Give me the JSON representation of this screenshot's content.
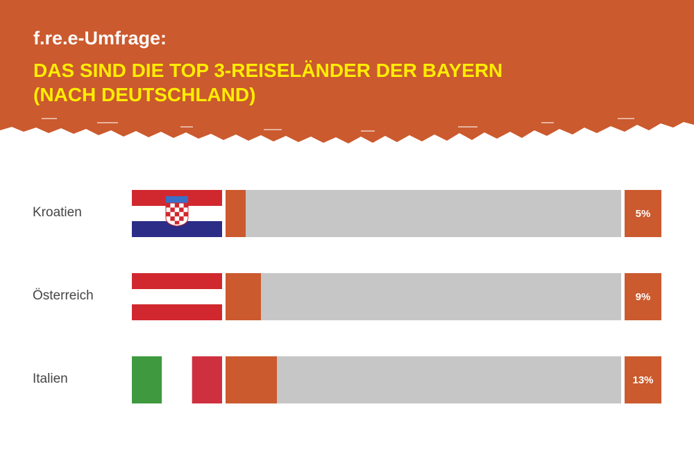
{
  "header": {
    "kicker": "f.re.e-Umfrage:",
    "title_line1": "DAS SIND DIE TOP 3-REISELÄNDER DER BAYERN",
    "title_line2": "(NACH DEUTSCHLAND)"
  },
  "colors": {
    "header_bg": "#cb5a2e",
    "bar": "#cb5a2e",
    "track": "#c6c6c6",
    "headline": "#ffed00"
  },
  "chart_data": {
    "type": "bar",
    "orientation": "horizontal",
    "title": "DAS SIND DIE TOP 3-REISELÄNDER DER BAYERN (NACH DEUTSCHLAND)",
    "categories": [
      "Kroatien",
      "Österreich",
      "Italien"
    ],
    "values": [
      5,
      9,
      13
    ],
    "value_labels": [
      "5%",
      "9%",
      "13%"
    ],
    "unit": "%",
    "xlim": [
      0,
      100
    ],
    "flags": [
      "croatia-flag",
      "austria-flag",
      "italy-flag"
    ]
  }
}
